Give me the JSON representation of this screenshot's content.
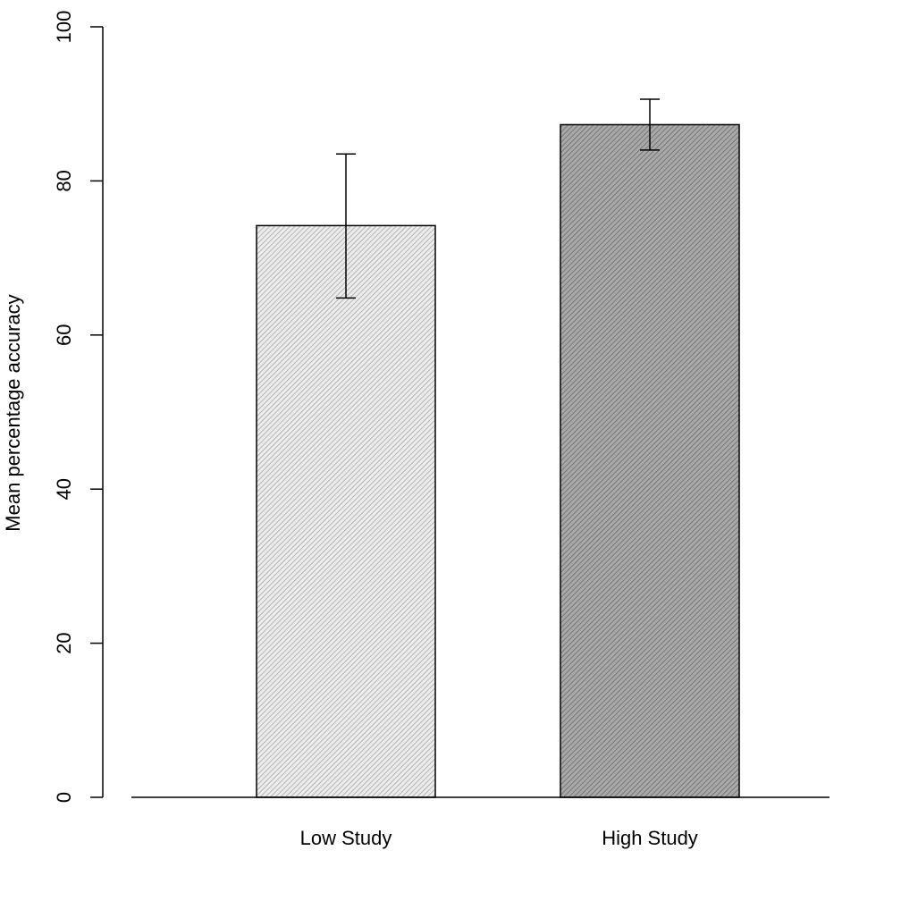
{
  "chart_data": {
    "type": "bar",
    "categories": [
      "Low Study",
      "High Study"
    ],
    "values": [
      74.2,
      87.3
    ],
    "error_bars": {
      "lower": [
        64.8,
        84.0
      ],
      "upper": [
        83.5,
        90.6
      ]
    },
    "title": "",
    "xlabel": "",
    "ylabel": "Mean percentage accuracy",
    "ylim": [
      0,
      100
    ],
    "yticks": [
      0,
      20,
      40,
      60,
      80,
      100
    ],
    "grid": false,
    "legend": "none",
    "colors": {
      "bars": [
        "#ececec",
        "#a9a9a9"
      ],
      "hatch": [
        "#a8a8a8",
        "#6a6a6a"
      ],
      "outline": "#000000"
    }
  }
}
